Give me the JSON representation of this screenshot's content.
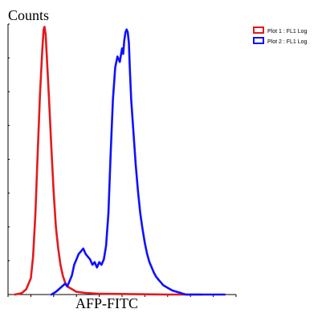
{
  "chart_data": {
    "type": "line",
    "ylabel": "Counts",
    "xlabel": "AFP-FITC",
    "xlim": [
      0,
      100
    ],
    "ylim": [
      0,
      100
    ],
    "legend_position": "top-right",
    "series": [
      {
        "name": "Plot 1 : FL1 Log",
        "color": "#e31a1c",
        "x": [
          3,
          6,
          8,
          10,
          11,
          12,
          13,
          14,
          15,
          15.6,
          16,
          16.5,
          17,
          18,
          19,
          20,
          21,
          22,
          23,
          24,
          25,
          26,
          28,
          30,
          34,
          40,
          50,
          60,
          70,
          85
        ],
        "y": [
          0,
          0.5,
          2,
          6,
          14,
          30,
          52,
          74,
          90,
          98,
          99,
          96,
          88,
          72,
          54,
          38,
          25,
          17,
          11,
          7,
          4.5,
          3,
          2,
          1,
          0.6,
          0.3,
          0.2,
          0.1,
          0,
          0
        ]
      },
      {
        "name": "Plot 2 : FL1 Log",
        "color": "#1010ff",
        "x": [
          19,
          21,
          23,
          25,
          26,
          28,
          29,
          30,
          31,
          32,
          33,
          34,
          35,
          36,
          37,
          38,
          39,
          40,
          41,
          42,
          43,
          44,
          45,
          46,
          47,
          48,
          49,
          50,
          50.5,
          51,
          51.5,
          52,
          52.5,
          53,
          53.5,
          54,
          54.5,
          55,
          56,
          57,
          58,
          59,
          60,
          61,
          62,
          63,
          64,
          65,
          66,
          67,
          68,
          70,
          72,
          74,
          76,
          77,
          78,
          80,
          85,
          95
        ],
        "y": [
          0,
          1,
          2.5,
          4,
          3,
          7,
          11,
          13,
          15,
          16,
          17,
          15,
          14,
          13,
          11,
          12,
          10,
          12,
          11,
          13,
          18,
          30,
          52,
          72,
          84,
          88,
          86,
          91,
          89,
          94,
          97,
          98,
          97,
          93,
          82,
          72,
          66,
          60,
          48,
          38,
          30,
          24,
          19,
          15,
          12,
          10,
          8,
          6.5,
          5.5,
          4.5,
          3.5,
          2.5,
          1.5,
          1,
          0.5,
          0.2,
          0,
          0,
          0,
          0
        ]
      }
    ]
  }
}
